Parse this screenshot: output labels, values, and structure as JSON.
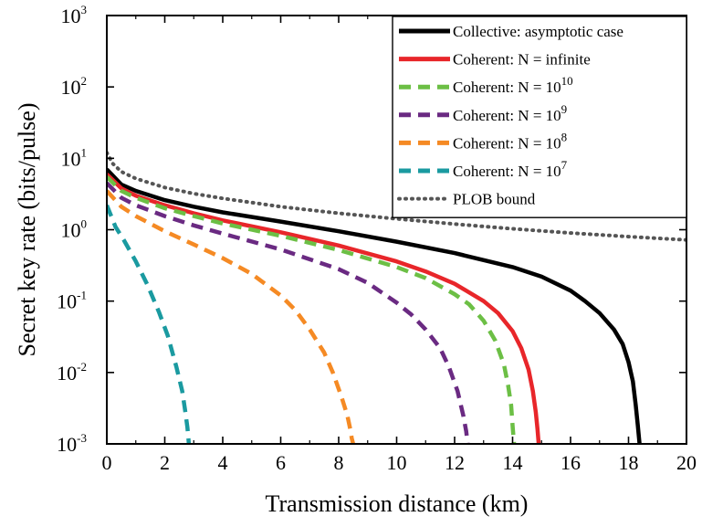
{
  "chart_data": {
    "type": "line",
    "xlabel": "Transmission distance (km)",
    "ylabel": "Secret key rate (bits/pulse)",
    "x_scale": "linear",
    "y_scale": "log",
    "xlim": [
      0,
      20
    ],
    "ylim": [
      0.001,
      1000
    ],
    "x_ticks": [
      "0",
      "2",
      "4",
      "6",
      "8",
      "10",
      "12",
      "14",
      "16",
      "18",
      "20"
    ],
    "y_ticks": [
      {
        "base": "10",
        "exp": "-3",
        "value": 0.001
      },
      {
        "base": "10",
        "exp": "-2",
        "value": 0.01
      },
      {
        "base": "10",
        "exp": "-1",
        "value": 0.1
      },
      {
        "base": "10",
        "exp": "0",
        "value": 1
      },
      {
        "base": "10",
        "exp": "1",
        "value": 10
      },
      {
        "base": "10",
        "exp": "2",
        "value": 100
      },
      {
        "base": "10",
        "exp": "3",
        "value": 1000
      }
    ],
    "grid": false,
    "legend_position": "top-right",
    "series": [
      {
        "name": "Collective: asymptotic case",
        "label_main": "Collective: asymptotic case",
        "label_sup": "",
        "color": "#000000",
        "style": "solid",
        "x": [
          0,
          0.5,
          1,
          2,
          3,
          4,
          6,
          8,
          10,
          12,
          14,
          15,
          16,
          16.5,
          17,
          17.5,
          17.8,
          18,
          18.15,
          18.25,
          18.32,
          18.38
        ],
        "y": [
          7,
          4.3,
          3.5,
          2.6,
          2.1,
          1.75,
          1.3,
          0.95,
          0.68,
          0.47,
          0.3,
          0.22,
          0.14,
          0.1,
          0.068,
          0.04,
          0.025,
          0.014,
          0.0075,
          0.0035,
          0.0018,
          0.001
        ]
      },
      {
        "name": "Coherent: N = infinite",
        "label_main": "Coherent: N = infinite",
        "label_sup": "",
        "color": "#e8262a",
        "style": "solid",
        "x": [
          0,
          0.5,
          1,
          2,
          3,
          4,
          6,
          8,
          10,
          11,
          12,
          13,
          13.5,
          14,
          14.3,
          14.55,
          14.7,
          14.8,
          14.86,
          14.9
        ],
        "y": [
          6,
          3.8,
          3.0,
          2.2,
          1.7,
          1.35,
          0.92,
          0.6,
          0.36,
          0.26,
          0.175,
          0.1,
          0.068,
          0.038,
          0.022,
          0.011,
          0.0055,
          0.0028,
          0.0016,
          0.001
        ]
      },
      {
        "name": "Coherent: N = 10^10",
        "label_main": "Coherent: N = 10",
        "label_sup": "10",
        "color": "#6cbf45",
        "style": "dashed",
        "x": [
          0,
          0.5,
          1,
          2,
          3,
          4,
          6,
          8,
          10,
          11,
          12,
          12.5,
          13,
          13.4,
          13.7,
          13.85,
          13.95,
          14.0,
          14.05
        ],
        "y": [
          5.5,
          3.5,
          2.8,
          2.0,
          1.55,
          1.22,
          0.82,
          0.52,
          0.3,
          0.21,
          0.125,
          0.09,
          0.053,
          0.028,
          0.013,
          0.0065,
          0.0035,
          0.0018,
          0.001
        ]
      },
      {
        "name": "Coherent: N = 10^9",
        "label_main": "Coherent: N = 10",
        "label_sup": "9",
        "color": "#6a2a82",
        "style": "dashed",
        "x": [
          0,
          0.5,
          1,
          2,
          3,
          4,
          6,
          8,
          9,
          10,
          10.5,
          11,
          11.5,
          11.8,
          12.1,
          12.3,
          12.4,
          12.45
        ],
        "y": [
          4.5,
          2.8,
          2.2,
          1.55,
          1.15,
          0.88,
          0.53,
          0.28,
          0.18,
          0.095,
          0.065,
          0.04,
          0.022,
          0.012,
          0.0055,
          0.0025,
          0.0015,
          0.001
        ]
      },
      {
        "name": "Coherent: N = 10^8",
        "label_main": "Coherent: N = 10",
        "label_sup": "8",
        "color": "#f58a24",
        "style": "dashed",
        "x": [
          0,
          0.5,
          1,
          2,
          3,
          4,
          5,
          6,
          6.5,
          7,
          7.5,
          7.8,
          8.1,
          8.3,
          8.4,
          8.45,
          8.5
        ],
        "y": [
          3.5,
          2.1,
          1.55,
          0.95,
          0.62,
          0.4,
          0.24,
          0.12,
          0.075,
          0.04,
          0.019,
          0.01,
          0.0045,
          0.0025,
          0.0016,
          0.0012,
          0.001
        ]
      },
      {
        "name": "Coherent: N = 10^7",
        "label_main": "Coherent: N = 10",
        "label_sup": "7",
        "color": "#1a9aa0",
        "style": "dashed",
        "x": [
          0,
          0.3,
          0.6,
          1.0,
          1.4,
          1.8,
          2.1,
          2.4,
          2.6,
          2.7,
          2.78,
          2.83
        ],
        "y": [
          2.2,
          1.1,
          0.7,
          0.36,
          0.17,
          0.07,
          0.033,
          0.012,
          0.0055,
          0.003,
          0.0017,
          0.001
        ]
      },
      {
        "name": "PLOB bound",
        "label_main": "PLOB bound",
        "label_sup": "",
        "color": "#555555",
        "style": "dotted",
        "x": [
          0,
          0.2,
          0.5,
          1,
          2,
          3,
          4,
          6,
          8,
          10,
          12,
          14,
          16,
          18,
          20
        ],
        "y": [
          12,
          8.5,
          6.5,
          5.2,
          3.9,
          3.2,
          2.75,
          2.1,
          1.7,
          1.42,
          1.2,
          1.03,
          0.9,
          0.8,
          0.72
        ]
      }
    ]
  }
}
